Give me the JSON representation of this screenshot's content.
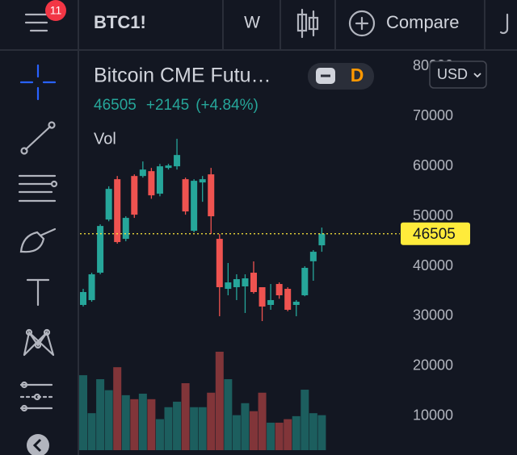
{
  "header": {
    "badge": "11",
    "symbol": "BTC1!",
    "interval": "W",
    "compare": "Compare"
  },
  "legend": {
    "title": "Bitcoin CME Futu…",
    "interval": "D",
    "change": "+2145",
    "change_pct": "(+4.84%)",
    "volume_label": "Vol"
  },
  "currency": "USD",
  "chart_data": {
    "type": "candlestick",
    "open": [
      32260,
      33230,
      38710,
      49350,
      57420,
      45480,
      58060,
      58060,
      59030,
      54520,
      59680,
      60000,
      57420,
      47100,
      56770,
      58390,
      45480,
      35480,
      35810,
      35970,
      38710,
      35810,
      32260,
      36450,
      35480,
      32260,
      34190,
      41000,
      44190
    ],
    "high": [
      35480,
      38710,
      48390,
      56000,
      58060,
      50000,
      58390,
      60970,
      59680,
      60480,
      60500,
      65500,
      57740,
      57420,
      58060,
      59680,
      46450,
      40650,
      38390,
      38390,
      40970,
      35810,
      36450,
      36770,
      35800,
      33230,
      40000,
      43230,
      47740
    ],
    "low": [
      31940,
      32900,
      38390,
      49000,
      44520,
      45000,
      49680,
      57740,
      53500,
      54000,
      59350,
      59350,
      50320,
      46800,
      52900,
      46450,
      30000,
      34190,
      33230,
      30650,
      34520,
      29030,
      31290,
      33500,
      31000,
      30000,
      34000,
      37100,
      42900
    ],
    "close": [
      34840,
      38390,
      48060,
      55480,
      44840,
      49680,
      50320,
      59350,
      54190,
      60000,
      60160,
      62260,
      50970,
      57100,
      57420,
      50000,
      35810,
      36770,
      37420,
      37580,
      34840,
      31940,
      33230,
      34190,
      31290,
      32900,
      39680,
      42900,
      46505
    ],
    "volume": [
      18200,
      10600,
      17400,
      15200,
      19800,
      14200,
      13400,
      14500,
      13400,
      9400,
      11800,
      12900,
      16600,
      11800,
      11800,
      14700,
      22900,
      17400,
      10200,
      12600,
      11000,
      14700,
      8700,
      8700,
      9400,
      10000,
      15300,
      10600,
      10200
    ],
    "last_price": 46505,
    "ylim": [
      3200,
      82300
    ],
    "yticks": [
      10000,
      20000,
      30000,
      40000,
      50000,
      60000,
      70000,
      80000
    ],
    "up_color": "#26a69a",
    "down_color": "#ef5350",
    "grid": false
  }
}
